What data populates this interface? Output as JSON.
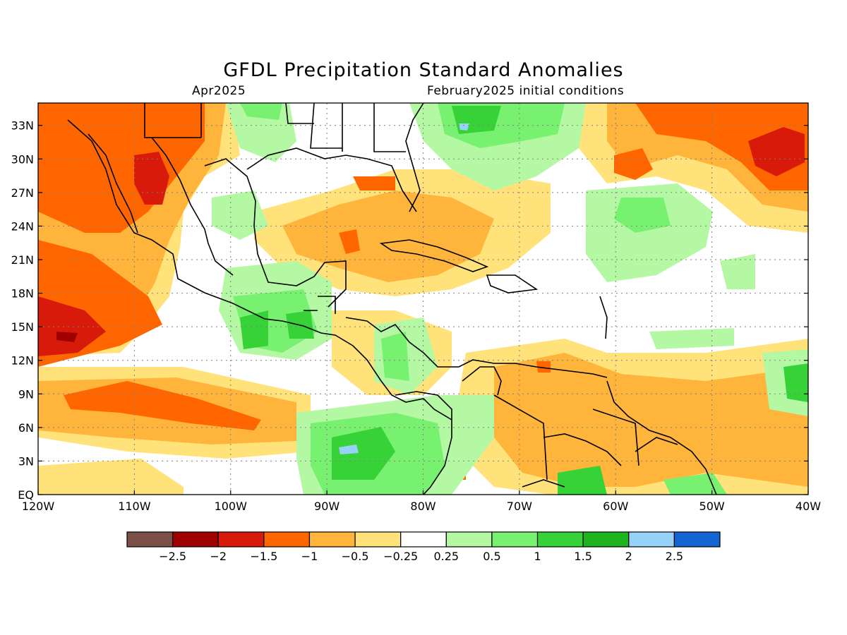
{
  "title": "GFDL Precipitation Standard Anomalies",
  "subtitle_left": "Apr2025",
  "subtitle_right": "February2025 initial conditions",
  "map": {
    "lon_range": [
      -120,
      -40
    ],
    "lat_range": [
      0,
      35
    ],
    "lon_ticks": [
      {
        "value": -120,
        "label": "120W"
      },
      {
        "value": -110,
        "label": "110W"
      },
      {
        "value": -100,
        "label": "100W"
      },
      {
        "value": -90,
        "label": "90W"
      },
      {
        "value": -80,
        "label": "80W"
      },
      {
        "value": -70,
        "label": "70W"
      },
      {
        "value": -60,
        "label": "60W"
      },
      {
        "value": -50,
        "label": "50W"
      },
      {
        "value": -40,
        "label": "40W"
      }
    ],
    "lat_ticks": [
      {
        "value": 0,
        "label": "EQ"
      },
      {
        "value": 3,
        "label": "3N"
      },
      {
        "value": 6,
        "label": "6N"
      },
      {
        "value": 9,
        "label": "9N"
      },
      {
        "value": 12,
        "label": "12N"
      },
      {
        "value": 15,
        "label": "15N"
      },
      {
        "value": 18,
        "label": "18N"
      },
      {
        "value": 21,
        "label": "21N"
      },
      {
        "value": 24,
        "label": "24N"
      },
      {
        "value": 27,
        "label": "27N"
      },
      {
        "value": 30,
        "label": "30N"
      },
      {
        "value": 33,
        "label": "33N"
      }
    ]
  },
  "colorbar": {
    "colors": [
      "#7a5048",
      "#a00000",
      "#d81a0a",
      "#ff6600",
      "#ffb43c",
      "#ffe27a",
      "#ffffff",
      "#b4f8a4",
      "#78f070",
      "#36d238",
      "#1eb41e",
      "#96d2fa",
      "#1464d2"
    ],
    "labels": [
      "-2.5",
      "-2",
      "-1.5",
      "-1",
      "-0.5",
      "-0.25",
      "0.25",
      "0.5",
      "1",
      "1.5",
      "2",
      "2.5"
    ]
  }
}
